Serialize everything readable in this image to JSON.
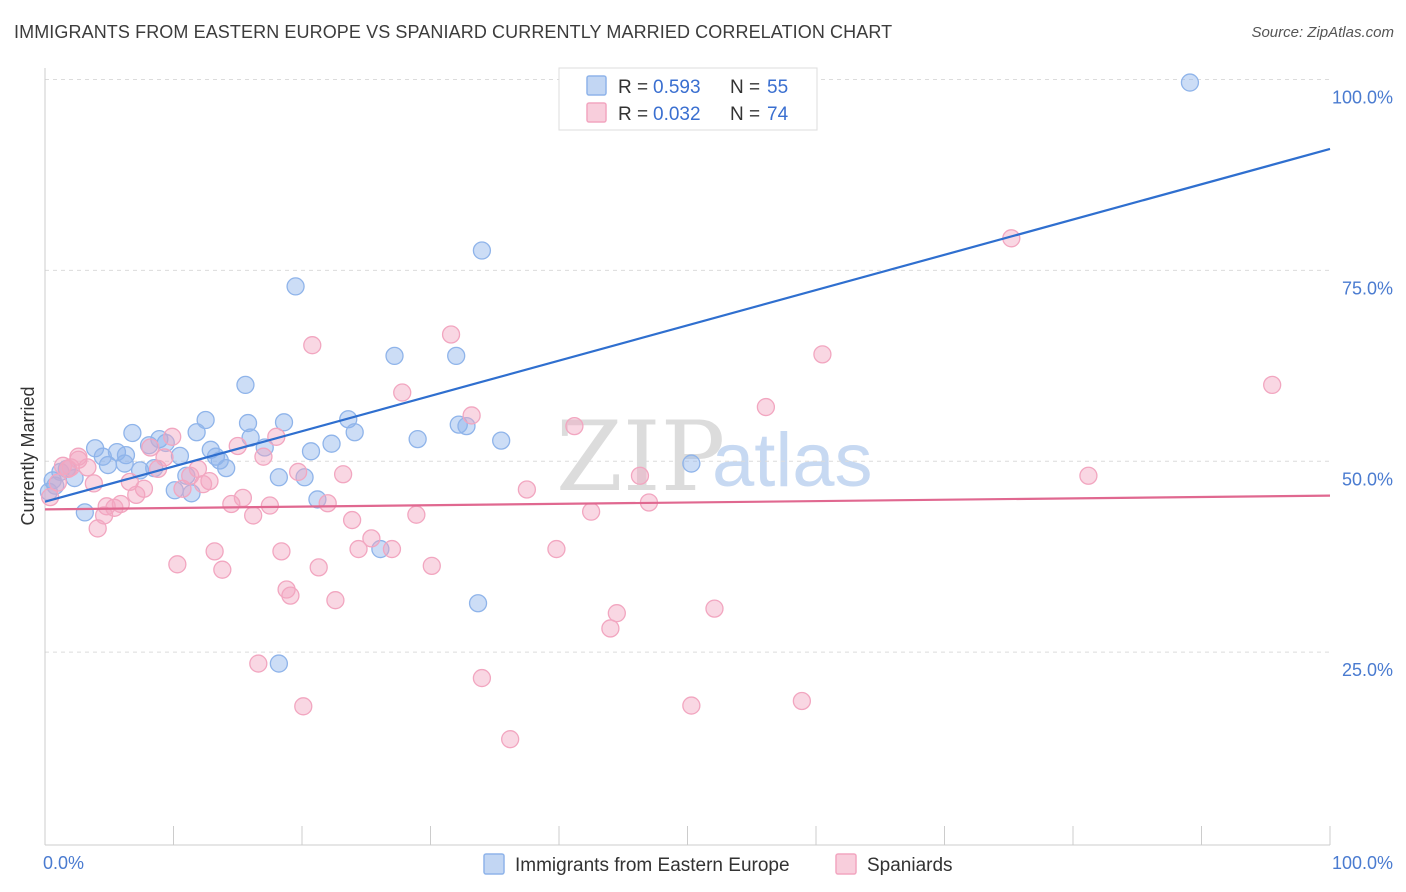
{
  "header": {
    "title": "IMMIGRANTS FROM EASTERN EUROPE VS SPANIARD CURRENTLY MARRIED CORRELATION CHART",
    "source": "Source: ZipAtlas.com"
  },
  "watermark": {
    "zip": "ZIP",
    "atlas": "atlas"
  },
  "legend": {
    "rows": [
      {
        "r_label": "R = ",
        "r_value": "0.593",
        "n_label": "N = ",
        "n_value": "55",
        "color": "#8fb4ea"
      },
      {
        "r_label": "R = ",
        "r_value": "0.032",
        "n_label": "N = ",
        "n_value": "74",
        "color": "#f2a6c0"
      }
    ]
  },
  "chart_data": {
    "type": "scatter",
    "title": "IMMIGRANTS FROM EASTERN EUROPE VS SPANIARD CURRENTLY MARRIED CORRELATION CHART",
    "xlabel": "",
    "ylabel": "Currently Married",
    "xlim": [
      0,
      100
    ],
    "ylim": [
      0,
      100
    ],
    "x_tick_labels": [
      "0.0%",
      "100.0%"
    ],
    "y_ticks": [
      25,
      50,
      75,
      100
    ],
    "y_tick_labels": [
      "25.0%",
      "50.0%",
      "75.0%",
      "100.0%"
    ],
    "grid": true,
    "legend_position": "top-center",
    "series": [
      {
        "name": "Immigrants from Eastern Europe",
        "color": "#8fb4ea",
        "line_color": "#2f6fcf",
        "trend": {
          "x": [
            0,
            100
          ],
          "y": [
            44.7,
            90.9
          ]
        },
        "points": [
          [
            0.3,
            46.0
          ],
          [
            0.6,
            47.5
          ],
          [
            0.8,
            46.8
          ],
          [
            1.2,
            48.6
          ],
          [
            1.7,
            49.0
          ],
          [
            2.3,
            47.8
          ],
          [
            3.1,
            43.3
          ],
          [
            3.9,
            51.7
          ],
          [
            4.5,
            50.6
          ],
          [
            4.9,
            49.5
          ],
          [
            5.6,
            51.2
          ],
          [
            6.3,
            50.8
          ],
          [
            6.2,
            49.7
          ],
          [
            6.8,
            53.7
          ],
          [
            7.4,
            48.8
          ],
          [
            8.1,
            52.1
          ],
          [
            8.5,
            49.1
          ],
          [
            8.9,
            52.9
          ],
          [
            9.4,
            52.4
          ],
          [
            10.1,
            46.2
          ],
          [
            10.5,
            50.7
          ],
          [
            11.0,
            48.1
          ],
          [
            11.4,
            45.8
          ],
          [
            11.8,
            53.8
          ],
          [
            12.5,
            55.4
          ],
          [
            12.9,
            51.5
          ],
          [
            13.3,
            50.6
          ],
          [
            13.6,
            50.1
          ],
          [
            14.1,
            49.1
          ],
          [
            15.6,
            60.0
          ],
          [
            15.8,
            55.0
          ],
          [
            16.0,
            53.1
          ],
          [
            17.1,
            51.8
          ],
          [
            18.6,
            55.1
          ],
          [
            18.2,
            47.9
          ],
          [
            19.5,
            72.9
          ],
          [
            18.2,
            23.5
          ],
          [
            20.2,
            47.9
          ],
          [
            20.7,
            51.3
          ],
          [
            21.2,
            45.0
          ],
          [
            22.3,
            52.3
          ],
          [
            23.6,
            55.5
          ],
          [
            24.1,
            53.8
          ],
          [
            26.1,
            38.5
          ],
          [
            27.2,
            63.8
          ],
          [
            29.0,
            52.9
          ],
          [
            32.0,
            63.8
          ],
          [
            32.2,
            54.8
          ],
          [
            32.8,
            54.6
          ],
          [
            33.7,
            31.4
          ],
          [
            34.0,
            77.6
          ],
          [
            35.5,
            52.7
          ],
          [
            47.7,
            100.0
          ],
          [
            50.3,
            49.7
          ],
          [
            89.1,
            99.6
          ]
        ]
      },
      {
        "name": "Spaniards",
        "color": "#f2a6c0",
        "line_color": "#e06890",
        "trend": {
          "x": [
            0,
            100
          ],
          "y": [
            43.7,
            45.5
          ]
        },
        "points": [
          [
            0.4,
            45.3
          ],
          [
            1.0,
            47.2
          ],
          [
            1.4,
            49.4
          ],
          [
            2.0,
            49.2
          ],
          [
            2.6,
            50.6
          ],
          [
            3.3,
            49.2
          ],
          [
            3.8,
            47.1
          ],
          [
            4.1,
            41.2
          ],
          [
            4.6,
            42.9
          ],
          [
            4.8,
            44.1
          ],
          [
            5.4,
            43.9
          ],
          [
            5.9,
            44.4
          ],
          [
            6.6,
            47.3
          ],
          [
            7.1,
            45.6
          ],
          [
            7.7,
            46.4
          ],
          [
            8.2,
            51.8
          ],
          [
            8.8,
            49.0
          ],
          [
            9.3,
            50.5
          ],
          [
            9.9,
            53.2
          ],
          [
            10.3,
            36.5
          ],
          [
            10.7,
            46.4
          ],
          [
            11.3,
            48.1
          ],
          [
            11.9,
            49.0
          ],
          [
            12.3,
            47.0
          ],
          [
            12.8,
            47.4
          ],
          [
            13.2,
            38.2
          ],
          [
            13.8,
            35.8
          ],
          [
            14.5,
            44.4
          ],
          [
            15.0,
            52.0
          ],
          [
            15.4,
            45.2
          ],
          [
            16.2,
            42.9
          ],
          [
            16.6,
            23.5
          ],
          [
            17.0,
            50.6
          ],
          [
            17.5,
            44.2
          ],
          [
            18.0,
            53.2
          ],
          [
            18.4,
            38.2
          ],
          [
            18.8,
            33.2
          ],
          [
            19.1,
            32.4
          ],
          [
            19.7,
            48.6
          ],
          [
            20.1,
            17.9
          ],
          [
            20.8,
            65.2
          ],
          [
            21.3,
            36.1
          ],
          [
            22.0,
            44.5
          ],
          [
            22.6,
            31.8
          ],
          [
            23.2,
            48.3
          ],
          [
            23.9,
            42.3
          ],
          [
            24.4,
            38.5
          ],
          [
            25.4,
            39.9
          ],
          [
            27.0,
            38.5
          ],
          [
            27.8,
            59.0
          ],
          [
            28.9,
            43.0
          ],
          [
            30.1,
            36.3
          ],
          [
            31.6,
            66.6
          ],
          [
            33.2,
            56.0
          ],
          [
            34.0,
            21.6
          ],
          [
            36.2,
            13.6
          ],
          [
            37.5,
            46.3
          ],
          [
            39.8,
            38.5
          ],
          [
            41.2,
            54.6
          ],
          [
            42.5,
            43.4
          ],
          [
            44.0,
            28.1
          ],
          [
            44.5,
            30.1
          ],
          [
            46.3,
            48.1
          ],
          [
            47.0,
            44.6
          ],
          [
            50.3,
            18.0
          ],
          [
            52.1,
            30.7
          ],
          [
            56.1,
            57.1
          ],
          [
            58.9,
            18.6
          ],
          [
            60.5,
            64.0
          ],
          [
            75.2,
            79.2
          ],
          [
            81.2,
            48.1
          ],
          [
            95.5,
            60.0
          ],
          [
            1.8,
            49.0
          ],
          [
            2.6,
            50.2
          ]
        ]
      }
    ]
  }
}
